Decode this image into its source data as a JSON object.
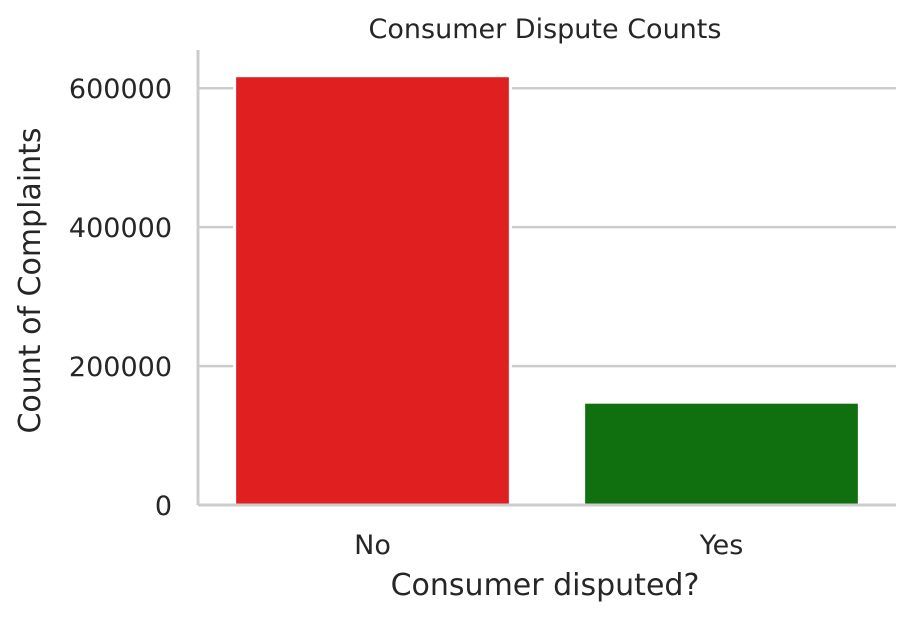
{
  "chart_data": {
    "type": "bar",
    "title": "Consumer Dispute Counts",
    "xlabel": "Consumer disputed?",
    "ylabel": "Count of Complaints",
    "categories": [
      "No",
      "Yes"
    ],
    "values": [
      618000,
      148000
    ],
    "colors": [
      "#e02020",
      "#107010"
    ],
    "ylim": [
      0,
      655000
    ],
    "yticks": [
      0,
      200000,
      400000,
      600000
    ],
    "ytick_labels": [
      "0",
      "200000",
      "400000",
      "600000"
    ],
    "grid": "horizontal",
    "legend": "none"
  }
}
